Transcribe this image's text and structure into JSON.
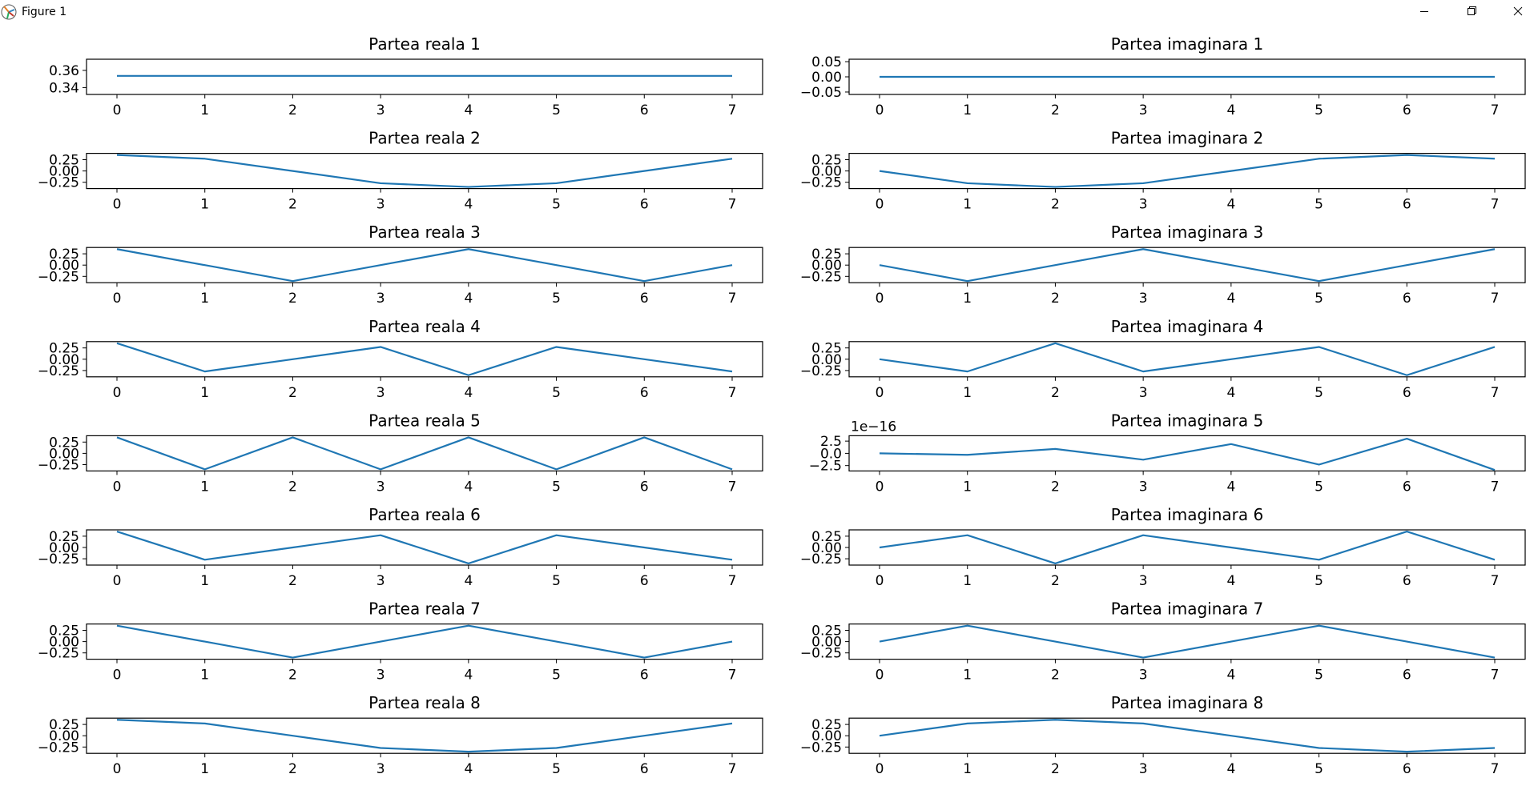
{
  "window": {
    "title": "Figure 1",
    "minimize_icon": "minimize-icon",
    "maximize_icon": "restore-icon",
    "close_icon": "close-icon",
    "app_icon": "matplotlib-icon"
  },
  "chart_data": [
    {
      "type": "line",
      "title": "Partea reala 1",
      "x": [
        0,
        1,
        2,
        3,
        4,
        5,
        6,
        7
      ],
      "values": [
        0.3536,
        0.3536,
        0.3536,
        0.3536,
        0.3536,
        0.3536,
        0.3536,
        0.3536
      ],
      "ylim": [
        0.332,
        0.373
      ],
      "yticks": [
        0.34,
        0.36
      ],
      "ytick_labels": [
        "0.34",
        "0.36"
      ],
      "xticks": [
        0,
        1,
        2,
        3,
        4,
        5,
        6,
        7
      ],
      "color": "#1f77b4"
    },
    {
      "type": "line",
      "title": "Partea imaginara 1",
      "x": [
        0,
        1,
        2,
        3,
        4,
        5,
        6,
        7
      ],
      "values": [
        0,
        0,
        0,
        0,
        0,
        0,
        0,
        0
      ],
      "ylim": [
        -0.058,
        0.058
      ],
      "yticks": [
        -0.05,
        0,
        0.05
      ],
      "ytick_labels": [
        "−0.05",
        "0.00",
        "0.05"
      ],
      "xticks": [
        0,
        1,
        2,
        3,
        4,
        5,
        6,
        7
      ],
      "color": "#1f77b4"
    },
    {
      "type": "line",
      "title": "Partea reala 2",
      "x": [
        0,
        1,
        2,
        3,
        4,
        5,
        6,
        7
      ],
      "values": [
        0.3536,
        0.2716,
        0.0,
        -0.2716,
        -0.3536,
        -0.2716,
        0.0,
        0.2716
      ],
      "ylim": [
        -0.39,
        0.39
      ],
      "yticks": [
        -0.25,
        0,
        0.25
      ],
      "ytick_labels": [
        "−0.25",
        "0.00",
        "0.25"
      ],
      "xticks": [
        0,
        1,
        2,
        3,
        4,
        5,
        6,
        7
      ],
      "color": "#1f77b4"
    },
    {
      "type": "line",
      "title": "Partea imaginara 2",
      "x": [
        0,
        1,
        2,
        3,
        4,
        5,
        6,
        7
      ],
      "values": [
        0.0,
        -0.2716,
        -0.3536,
        -0.2716,
        0.0,
        0.2716,
        0.3536,
        0.2716
      ],
      "ylim": [
        -0.39,
        0.39
      ],
      "yticks": [
        -0.25,
        0,
        0.25
      ],
      "ytick_labels": [
        "−0.25",
        "0.00",
        "0.25"
      ],
      "xticks": [
        0,
        1,
        2,
        3,
        4,
        5,
        6,
        7
      ],
      "color": "#1f77b4"
    },
    {
      "type": "line",
      "title": "Partea reala 3",
      "x": [
        0,
        1,
        2,
        3,
        4,
        5,
        6,
        7
      ],
      "values": [
        0.3536,
        0.0,
        -0.3536,
        0.0,
        0.3536,
        0.0,
        -0.3536,
        0.0
      ],
      "ylim": [
        -0.39,
        0.39
      ],
      "yticks": [
        -0.25,
        0,
        0.25
      ],
      "ytick_labels": [
        "−0.25",
        "0.00",
        "0.25"
      ],
      "xticks": [
        0,
        1,
        2,
        3,
        4,
        5,
        6,
        7
      ],
      "color": "#1f77b4"
    },
    {
      "type": "line",
      "title": "Partea imaginara 3",
      "x": [
        0,
        1,
        2,
        3,
        4,
        5,
        6,
        7
      ],
      "values": [
        0.0,
        -0.3536,
        0.0,
        0.3536,
        0.0,
        -0.3536,
        0.0,
        0.3536
      ],
      "ylim": [
        -0.39,
        0.39
      ],
      "yticks": [
        -0.25,
        0,
        0.25
      ],
      "ytick_labels": [
        "−0.25",
        "0.00",
        "0.25"
      ],
      "xticks": [
        0,
        1,
        2,
        3,
        4,
        5,
        6,
        7
      ],
      "color": "#1f77b4"
    },
    {
      "type": "line",
      "title": "Partea reala 4",
      "x": [
        0,
        1,
        2,
        3,
        4,
        5,
        6,
        7
      ],
      "values": [
        0.3536,
        -0.2716,
        0.0,
        0.2716,
        -0.3536,
        0.2716,
        0.0,
        -0.2716
      ],
      "ylim": [
        -0.39,
        0.39
      ],
      "yticks": [
        -0.25,
        0,
        0.25
      ],
      "ytick_labels": [
        "−0.25",
        "0.00",
        "0.25"
      ],
      "xticks": [
        0,
        1,
        2,
        3,
        4,
        5,
        6,
        7
      ],
      "color": "#1f77b4"
    },
    {
      "type": "line",
      "title": "Partea imaginara 4",
      "x": [
        0,
        1,
        2,
        3,
        4,
        5,
        6,
        7
      ],
      "values": [
        0.0,
        -0.2716,
        0.3536,
        -0.2716,
        0.0,
        0.2716,
        -0.3536,
        0.2716
      ],
      "ylim": [
        -0.39,
        0.39
      ],
      "yticks": [
        -0.25,
        0,
        0.25
      ],
      "ytick_labels": [
        "−0.25",
        "0.00",
        "0.25"
      ],
      "xticks": [
        0,
        1,
        2,
        3,
        4,
        5,
        6,
        7
      ],
      "color": "#1f77b4"
    },
    {
      "type": "line",
      "title": "Partea reala 5",
      "x": [
        0,
        1,
        2,
        3,
        4,
        5,
        6,
        7
      ],
      "values": [
        0.3536,
        -0.3536,
        0.3536,
        -0.3536,
        0.3536,
        -0.3536,
        0.3536,
        -0.3536
      ],
      "ylim": [
        -0.39,
        0.39
      ],
      "yticks": [
        -0.25,
        0,
        0.25
      ],
      "ytick_labels": [
        "−0.25",
        "0.00",
        "0.25"
      ],
      "xticks": [
        0,
        1,
        2,
        3,
        4,
        5,
        6,
        7
      ],
      "color": "#1f77b4"
    },
    {
      "type": "line",
      "title": "Partea imaginara 5",
      "x": [
        0,
        1,
        2,
        3,
        4,
        5,
        6,
        7
      ],
      "values": [
        0.0,
        -0.3,
        0.9,
        -1.3,
        1.9,
        -2.3,
        3.0,
        -3.4
      ],
      "ylim": [
        -3.6,
        3.6
      ],
      "yticks": [
        -2.5,
        0,
        2.5
      ],
      "ytick_labels": [
        "−2.5",
        "0.0",
        "2.5"
      ],
      "offset_text": "1e−16",
      "xticks": [
        0,
        1,
        2,
        3,
        4,
        5,
        6,
        7
      ],
      "color": "#1f77b4"
    },
    {
      "type": "line",
      "title": "Partea reala 6",
      "x": [
        0,
        1,
        2,
        3,
        4,
        5,
        6,
        7
      ],
      "values": [
        0.3536,
        -0.2716,
        0.0,
        0.2716,
        -0.3536,
        0.2716,
        0.0,
        -0.2716
      ],
      "ylim": [
        -0.39,
        0.39
      ],
      "yticks": [
        -0.25,
        0,
        0.25
      ],
      "ytick_labels": [
        "−0.25",
        "0.00",
        "0.25"
      ],
      "xticks": [
        0,
        1,
        2,
        3,
        4,
        5,
        6,
        7
      ],
      "color": "#1f77b4"
    },
    {
      "type": "line",
      "title": "Partea imaginara 6",
      "x": [
        0,
        1,
        2,
        3,
        4,
        5,
        6,
        7
      ],
      "values": [
        0.0,
        0.2716,
        -0.3536,
        0.2716,
        0.0,
        -0.2716,
        0.3536,
        -0.2716
      ],
      "ylim": [
        -0.39,
        0.39
      ],
      "yticks": [
        -0.25,
        0,
        0.25
      ],
      "ytick_labels": [
        "−0.25",
        "0.00",
        "0.25"
      ],
      "xticks": [
        0,
        1,
        2,
        3,
        4,
        5,
        6,
        7
      ],
      "color": "#1f77b4"
    },
    {
      "type": "line",
      "title": "Partea reala 7",
      "x": [
        0,
        1,
        2,
        3,
        4,
        5,
        6,
        7
      ],
      "values": [
        0.3536,
        0.0,
        -0.3536,
        0.0,
        0.3536,
        0.0,
        -0.3536,
        0.0
      ],
      "ylim": [
        -0.39,
        0.39
      ],
      "yticks": [
        -0.25,
        0,
        0.25
      ],
      "ytick_labels": [
        "−0.25",
        "0.00",
        "0.25"
      ],
      "xticks": [
        0,
        1,
        2,
        3,
        4,
        5,
        6,
        7
      ],
      "color": "#1f77b4"
    },
    {
      "type": "line",
      "title": "Partea imaginara 7",
      "x": [
        0,
        1,
        2,
        3,
        4,
        5,
        6,
        7
      ],
      "values": [
        0.0,
        0.3536,
        0.0,
        -0.3536,
        0.0,
        0.3536,
        0.0,
        -0.3536
      ],
      "ylim": [
        -0.39,
        0.39
      ],
      "yticks": [
        -0.25,
        0,
        0.25
      ],
      "ytick_labels": [
        "−0.25",
        "0.00",
        "0.25"
      ],
      "xticks": [
        0,
        1,
        2,
        3,
        4,
        5,
        6,
        7
      ],
      "color": "#1f77b4"
    },
    {
      "type": "line",
      "title": "Partea reala 8",
      "x": [
        0,
        1,
        2,
        3,
        4,
        5,
        6,
        7
      ],
      "values": [
        0.3536,
        0.2716,
        0.0,
        -0.2716,
        -0.3536,
        -0.2716,
        0.0,
        0.2716
      ],
      "ylim": [
        -0.39,
        0.39
      ],
      "yticks": [
        -0.25,
        0,
        0.25
      ],
      "ytick_labels": [
        "−0.25",
        "0.00",
        "0.25"
      ],
      "xticks": [
        0,
        1,
        2,
        3,
        4,
        5,
        6,
        7
      ],
      "color": "#1f77b4"
    },
    {
      "type": "line",
      "title": "Partea imaginara 8",
      "x": [
        0,
        1,
        2,
        3,
        4,
        5,
        6,
        7
      ],
      "values": [
        0.0,
        0.2716,
        0.3536,
        0.2716,
        0.0,
        -0.2716,
        -0.3536,
        -0.2716
      ],
      "ylim": [
        -0.39,
        0.39
      ],
      "yticks": [
        -0.25,
        0,
        0.25
      ],
      "ytick_labels": [
        "−0.25",
        "0.00",
        "0.25"
      ],
      "xticks": [
        0,
        1,
        2,
        3,
        4,
        5,
        6,
        7
      ],
      "color": "#1f77b4"
    }
  ]
}
